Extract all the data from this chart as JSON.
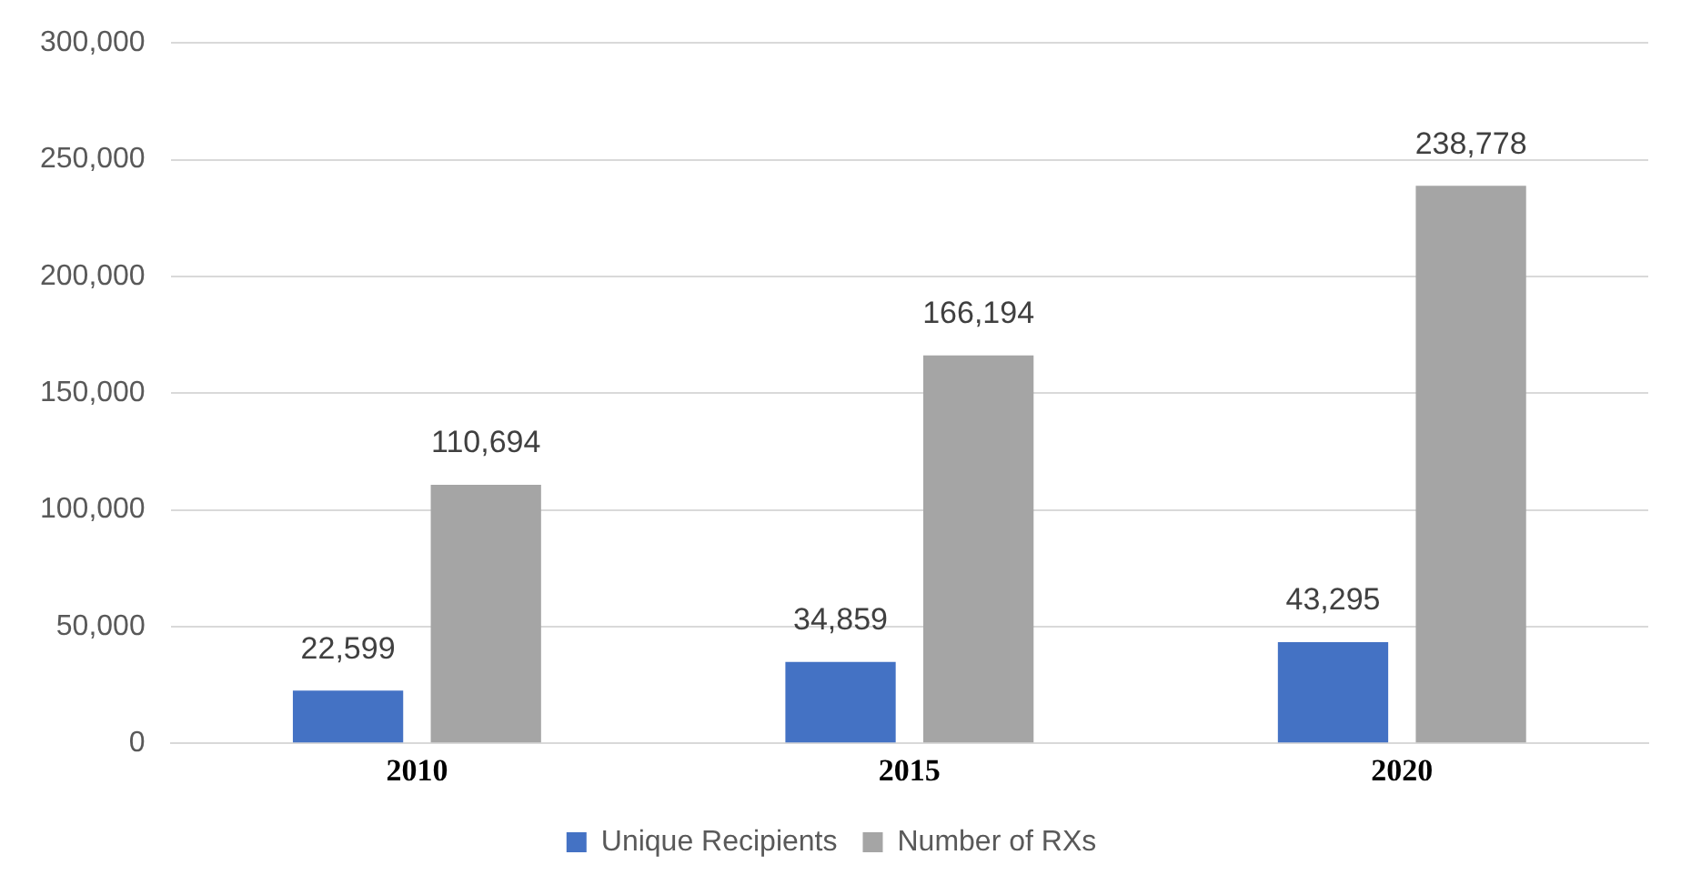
{
  "chart_data": {
    "type": "bar",
    "categories": [
      "2010",
      "2015",
      "2020"
    ],
    "series": [
      {
        "name": "Unique Recipients",
        "color": "#4472c4",
        "values": [
          22599,
          34859,
          43295
        ],
        "value_labels": [
          "22,599",
          "34,859",
          "43,295"
        ]
      },
      {
        "name": "Number of RXs",
        "color": "#a5a5a5",
        "values": [
          110694,
          166194,
          238778
        ],
        "value_labels": [
          "110,694",
          "166,194",
          "238,778"
        ]
      }
    ],
    "ylim": [
      0,
      300000
    ],
    "yticks": [
      0,
      {
        "value": 50000,
        "label": "50,000"
      },
      {
        "value": 100000,
        "label": "100,000"
      },
      {
        "value": 150000,
        "label": "150,000"
      },
      {
        "value": 200000,
        "label": "200,000"
      },
      {
        "value": 250000,
        "label": "250,000"
      },
      {
        "value": 300000,
        "label": "300,000"
      }
    ],
    "grid": "y",
    "legend": "bottom"
  }
}
